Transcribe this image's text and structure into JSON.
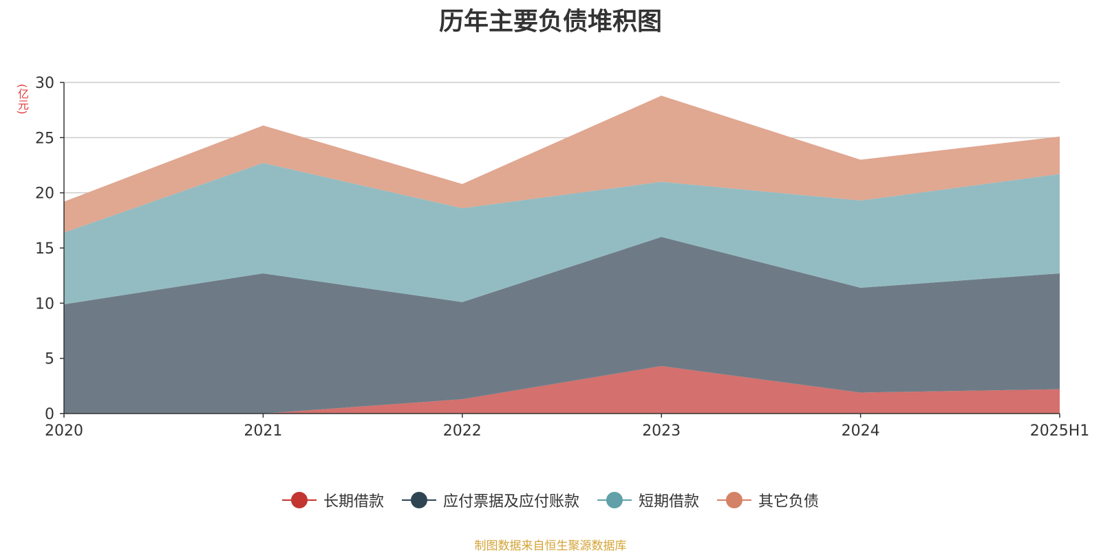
{
  "chart_data": {
    "type": "area",
    "title": "历年主要负债堆积图",
    "ylabel": "(亿元)",
    "xlabel": "",
    "categories": [
      "2020",
      "2021",
      "2022",
      "2023",
      "2024",
      "2025H1"
    ],
    "ylim": [
      0,
      30
    ],
    "yticks": [
      0,
      5,
      10,
      15,
      20,
      25,
      30
    ],
    "stacked": true,
    "grid": true,
    "legend_position": "bottom",
    "series": [
      {
        "name": "长期借款",
        "color": "#c23531",
        "fill": "#d4706d",
        "values": [
          0,
          0,
          1.3,
          4.3,
          1.9,
          2.2
        ]
      },
      {
        "name": "应付票据及应付账款",
        "color": "#2f4554",
        "fill": "#6e7b86",
        "values": [
          9.9,
          12.7,
          8.8,
          11.7,
          9.5,
          10.5
        ]
      },
      {
        "name": "短期借款",
        "color": "#61a0a8",
        "fill": "#93bcc2",
        "values": [
          6.5,
          10.0,
          8.5,
          5.0,
          7.9,
          9.0
        ]
      },
      {
        "name": "其它负债",
        "color": "#d48265",
        "fill": "#e0a791",
        "values": [
          2.8,
          3.4,
          2.2,
          7.8,
          3.7,
          3.4
        ]
      }
    ]
  },
  "footer": {
    "source": "制图数据来自恒生聚源数据库"
  }
}
